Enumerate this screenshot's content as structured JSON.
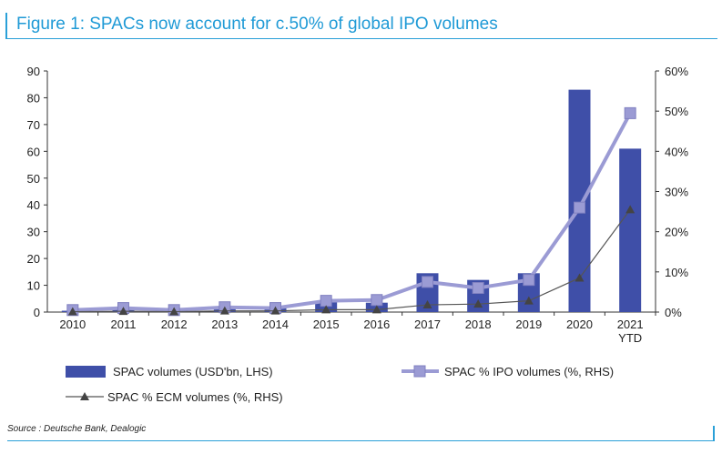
{
  "figure": {
    "title": "Figure 1: SPACs now account for c.50% of global IPO volumes",
    "source": "Source : Deutsche Bank, Dealogic"
  },
  "chart_data": {
    "type": "bar",
    "categories": [
      "2010",
      "2011",
      "2012",
      "2013",
      "2014",
      "2015",
      "2016",
      "2017",
      "2018",
      "2019",
      "2020",
      "2021\nYTD"
    ],
    "left_axis": {
      "min": 0,
      "max": 90,
      "ticks": [
        0,
        10,
        20,
        30,
        40,
        50,
        60,
        70,
        80,
        90
      ],
      "unit": ""
    },
    "right_axis": {
      "min": 0,
      "max": 60,
      "ticks": [
        0,
        10,
        20,
        30,
        40,
        50,
        60
      ],
      "unit": "%"
    },
    "series": [
      {
        "name": "SPAC volumes (USD'bn, LHS)",
        "type": "bar",
        "axis": "left",
        "color": "#3f4fa8",
        "values": [
          0.5,
          1,
          0.5,
          1.5,
          1.5,
          4,
          3.5,
          14.5,
          12,
          14.5,
          83,
          61
        ]
      },
      {
        "name": "SPAC % IPO volumes (%, RHS)",
        "type": "line",
        "axis": "right",
        "color": "#9b9bd4",
        "marker": "square",
        "values": [
          0.5,
          1,
          0.5,
          1.2,
          1,
          2.8,
          3,
          7.5,
          6,
          8,
          26,
          49.5
        ]
      },
      {
        "name": "SPAC % ECM volumes (%, RHS)",
        "type": "line",
        "axis": "right",
        "color": "#555555",
        "marker": "triangle",
        "values": [
          0.1,
          0.2,
          0.1,
          0.3,
          0.3,
          0.6,
          0.6,
          1.8,
          2,
          2.8,
          8.5,
          25.5
        ]
      }
    ],
    "legend": "bottom",
    "grid": false
  }
}
